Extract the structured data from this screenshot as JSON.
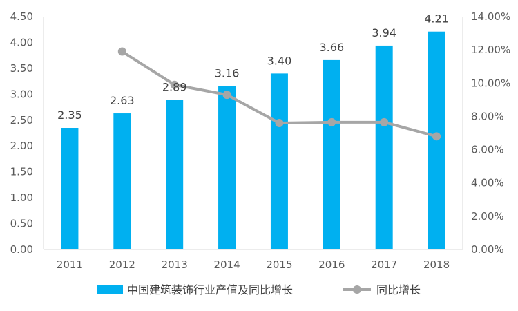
{
  "chart_data": {
    "type": "bar+line",
    "categories": [
      "2011",
      "2012",
      "2013",
      "2014",
      "2015",
      "2016",
      "2017",
      "2018"
    ],
    "series": [
      {
        "name": "中国建筑装饰行业产值及同比增长",
        "type": "bar",
        "axis": "left",
        "color": "#00B0F0",
        "values": [
          2.35,
          2.63,
          2.89,
          3.16,
          3.4,
          3.66,
          3.94,
          4.21
        ],
        "labels": [
          "2.35",
          "2.63",
          "2.89",
          "3.16",
          "3.40",
          "3.66",
          "3.94",
          "4.21"
        ]
      },
      {
        "name": "同比增长",
        "type": "line",
        "axis": "right",
        "color": "#A6A6A6",
        "values": [
          null,
          0.119,
          0.099,
          0.093,
          0.076,
          0.0765,
          0.0765,
          0.068
        ]
      }
    ],
    "y_left": {
      "min": 0,
      "max": 4.5,
      "ticks": [
        "0.00",
        "0.50",
        "1.00",
        "1.50",
        "2.00",
        "2.50",
        "3.00",
        "3.50",
        "4.00",
        "4.50"
      ]
    },
    "y_right": {
      "min": 0,
      "max": 0.14,
      "ticks": [
        "0.00%",
        "2.00%",
        "4.00%",
        "6.00%",
        "8.00%",
        "10.00%",
        "12.00%",
        "14.00%"
      ]
    },
    "legend_position": "bottom",
    "grid": false
  }
}
